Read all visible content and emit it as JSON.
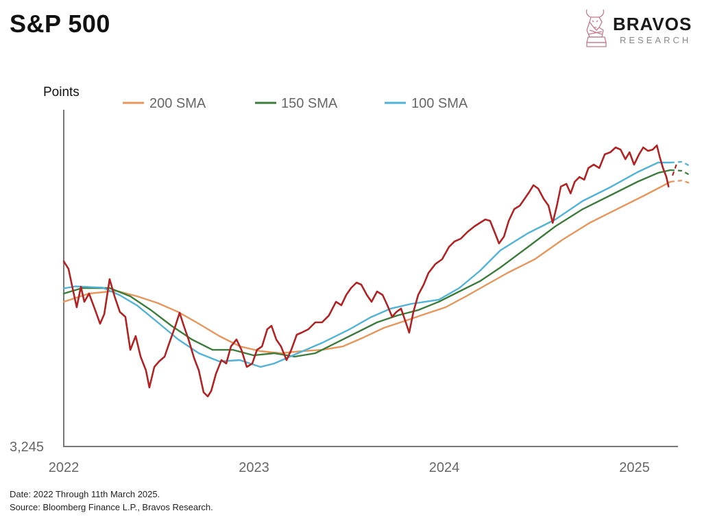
{
  "header": {
    "title": "S&P 500"
  },
  "logo": {
    "brand": "BRAVOS",
    "sub": "RESEARCH"
  },
  "footer": {
    "date_note": "Date: 2022 Through 11th March 2025.",
    "source_note": "Source: Bloomberg Finance L.P., Bravos Research."
  },
  "chart_data": {
    "type": "line",
    "title": "S&P 500",
    "ylabel": "Points",
    "xlabel": "",
    "xlim": [
      2022.0,
      2025.32
    ],
    "ylim": [
      3245,
      6495
    ],
    "y_tick_labels": [
      {
        "value": 3245,
        "label": "3,245"
      }
    ],
    "x_tick_labels": [
      {
        "value": 2022,
        "label": "2022"
      },
      {
        "value": 2023,
        "label": "2023"
      },
      {
        "value": 2024,
        "label": "2024"
      },
      {
        "value": 2025,
        "label": "2025"
      }
    ],
    "grid": false,
    "legend": {
      "placement": "top",
      "entries": [
        "200 SMA",
        "150 SMA",
        "100 SMA"
      ]
    },
    "series": [
      {
        "name": "S&P 500",
        "color": "#b22222",
        "x": [
          2022.0,
          2022.025,
          2022.05,
          2022.068,
          2022.09,
          2022.108,
          2022.133,
          2022.169,
          2022.191,
          2022.213,
          2022.241,
          2022.267,
          2022.295,
          2022.324,
          2022.35,
          2022.378,
          2022.404,
          2022.432,
          2022.45,
          2022.476,
          2022.501,
          2022.53,
          2022.555,
          2022.587,
          2022.609,
          2022.631,
          2022.656,
          2022.685,
          2022.71,
          2022.735,
          2022.757,
          2022.775,
          2022.8,
          2022.829,
          2022.854,
          2022.879,
          2022.908,
          2022.934,
          2022.962,
          2022.991,
          2023.016,
          2023.042,
          2023.07,
          2023.092,
          2023.117,
          2023.142,
          2023.171,
          2023.196,
          2023.225,
          2023.25,
          2023.286,
          2023.322,
          2023.358,
          2023.394,
          2023.431,
          2023.459,
          2023.485,
          2023.51,
          2023.539,
          2023.564,
          2023.593,
          2023.618,
          2023.647,
          2023.676,
          2023.701,
          2023.726,
          2023.748,
          2023.773,
          2023.798,
          2023.816,
          2023.838,
          2023.863,
          2023.892,
          2023.917,
          2023.953,
          2023.989,
          2024.025,
          2024.054,
          2024.087,
          2024.123,
          2024.159,
          2024.187,
          2024.216,
          2024.241,
          2024.267,
          2024.288,
          2024.314,
          2024.339,
          2024.368,
          2024.397,
          2024.422,
          2024.447,
          2024.469,
          2024.494,
          2024.523,
          2024.548,
          2024.57,
          2024.592,
          2024.613,
          2024.642,
          2024.664,
          2024.686,
          2024.711,
          2024.736,
          2024.758,
          2024.786,
          2024.815,
          2024.844,
          2024.873,
          2024.901,
          2024.927,
          2024.952,
          2024.974,
          2024.998,
          2025.024,
          2025.046,
          2025.071,
          2025.096,
          2025.118,
          2025.132,
          2025.15,
          2025.168,
          2025.179
        ],
        "values": [
          5032,
          4960,
          4741,
          4589,
          4787,
          4642,
          4721,
          4543,
          4430,
          4523,
          4860,
          4695,
          4543,
          4496,
          4178,
          4311,
          4112,
          3980,
          3814,
          4013,
          4066,
          4112,
          4245,
          4410,
          4536,
          4410,
          4278,
          4099,
          3980,
          3768,
          3728,
          3781,
          3947,
          4079,
          4046,
          4211,
          4278,
          4178,
          4013,
          4046,
          4178,
          4211,
          4377,
          4410,
          4278,
          4211,
          4079,
          4178,
          4324,
          4344,
          4377,
          4443,
          4443,
          4510,
          4642,
          4609,
          4708,
          4774,
          4827,
          4807,
          4708,
          4642,
          4741,
          4708,
          4609,
          4496,
          4543,
          4576,
          4443,
          4344,
          4543,
          4708,
          4807,
          4920,
          5006,
          5052,
          5171,
          5224,
          5251,
          5317,
          5370,
          5403,
          5436,
          5423,
          5304,
          5205,
          5271,
          5423,
          5536,
          5569,
          5635,
          5701,
          5767,
          5734,
          5635,
          5569,
          5403,
          5569,
          5754,
          5780,
          5688,
          5800,
          5846,
          5820,
          5933,
          5966,
          5933,
          6065,
          6085,
          6131,
          6111,
          6018,
          6085,
          5966,
          6065,
          6131,
          6098,
          6111,
          6151,
          6045,
          5933,
          5846,
          5754
        ]
      },
      {
        "name": "200 SMA",
        "color": "#e8955a",
        "x": [
          2022.0,
          2022.133,
          2022.277,
          2022.386,
          2022.494,
          2022.602,
          2022.71,
          2022.818,
          2022.926,
          2023.034,
          2023.142,
          2023.25,
          2023.358,
          2023.467,
          2023.575,
          2023.683,
          2023.791,
          2023.899,
          2024.007,
          2024.115,
          2024.223,
          2024.332,
          2024.476,
          2024.62,
          2024.764,
          2024.908,
          2025.052,
          2025.142,
          2025.189
        ],
        "values": [
          4642,
          4721,
          4748,
          4695,
          4629,
          4543,
          4430,
          4311,
          4211,
          4165,
          4145,
          4165,
          4178,
          4211,
          4297,
          4390,
          4456,
          4523,
          4589,
          4695,
          4807,
          4920,
          5052,
          5238,
          5403,
          5536,
          5668,
          5754,
          5800
        ]
      },
      {
        "name": "150 SMA",
        "color": "#3a7d3a",
        "x": [
          2022.0,
          2022.097,
          2022.241,
          2022.35,
          2022.458,
          2022.566,
          2022.674,
          2022.782,
          2022.89,
          2022.998,
          2023.106,
          2023.214,
          2023.322,
          2023.431,
          2023.539,
          2023.647,
          2023.755,
          2023.863,
          2023.971,
          2024.079,
          2024.187,
          2024.295,
          2024.44,
          2024.584,
          2024.728,
          2024.872,
          2025.016,
          2025.124,
          2025.189
        ],
        "values": [
          4721,
          4774,
          4774,
          4695,
          4562,
          4410,
          4278,
          4178,
          4178,
          4125,
          4145,
          4112,
          4145,
          4245,
          4344,
          4443,
          4510,
          4562,
          4642,
          4741,
          4840,
          4973,
          5171,
          5370,
          5536,
          5668,
          5800,
          5886,
          5913
        ]
      },
      {
        "name": "100 SMA",
        "color": "#4fb3d9",
        "x": [
          2022.0,
          2022.061,
          2022.205,
          2022.295,
          2022.386,
          2022.494,
          2022.602,
          2022.71,
          2022.818,
          2022.926,
          2023.034,
          2023.106,
          2023.214,
          2023.358,
          2023.503,
          2023.611,
          2023.719,
          2023.827,
          2023.971,
          2024.079,
          2024.187,
          2024.295,
          2024.44,
          2024.584,
          2024.728,
          2024.872,
          2025.016,
          2025.124,
          2025.189
        ],
        "values": [
          4771,
          4791,
          4778,
          4705,
          4606,
          4443,
          4278,
          4145,
          4066,
          4079,
          4013,
          4046,
          4132,
          4245,
          4377,
          4490,
          4576,
          4622,
          4662,
          4774,
          4940,
          5138,
          5304,
          5436,
          5615,
          5747,
          5893,
          5986,
          5986
        ]
      }
    ],
    "projections": [
      {
        "name": "200 SMA projection",
        "color": "#e8955a",
        "x": [
          2025.189,
          2025.25,
          2025.29
        ],
        "values": [
          5800,
          5813,
          5787
        ]
      },
      {
        "name": "150 SMA projection",
        "color": "#3a7d3a",
        "x": [
          2025.189,
          2025.25,
          2025.29
        ],
        "values": [
          5913,
          5906,
          5866
        ]
      },
      {
        "name": "100 SMA projection",
        "color": "#4fb3d9",
        "x": [
          2025.189,
          2025.25,
          2025.29
        ],
        "values": [
          5986,
          5993,
          5953
        ]
      },
      {
        "name": "S&P 500 projection",
        "color": "#b22222",
        "x": [
          2025.2,
          2025.225
        ],
        "values": [
          5860,
          5990
        ]
      }
    ]
  }
}
